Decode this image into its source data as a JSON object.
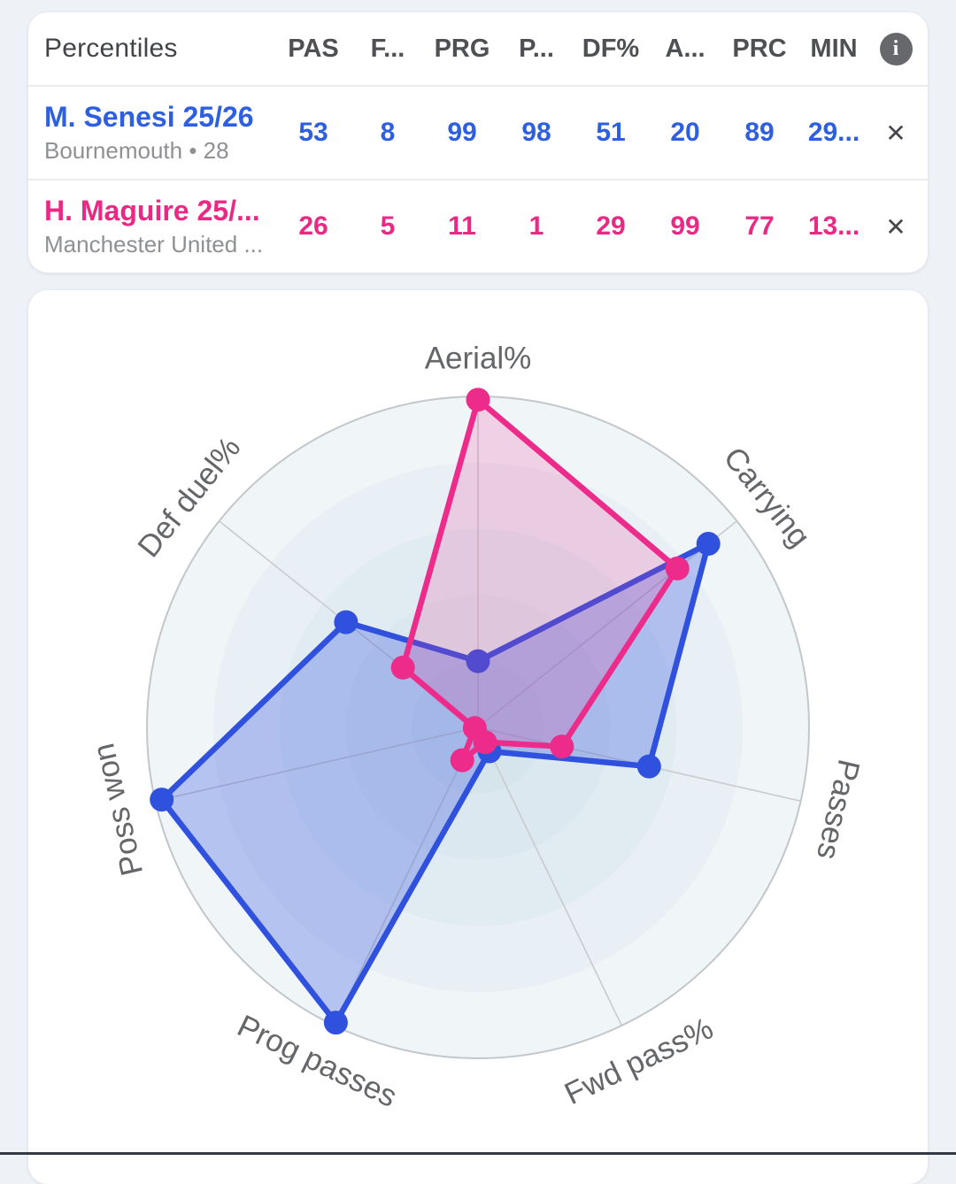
{
  "table": {
    "title": "Percentiles",
    "columns": [
      "PAS",
      "F...",
      "PRG",
      "P...",
      "DF%",
      "A...",
      "PRC",
      "MIN"
    ],
    "info_icon": "i",
    "close_icon": "✕",
    "rows": [
      {
        "name": "M. Senesi 25/26",
        "subtitle": "Bournemouth • 28",
        "color": "#2e5fe0",
        "values": [
          "53",
          "8",
          "99",
          "98",
          "51",
          "20",
          "89",
          "29..."
        ]
      },
      {
        "name": "H. Maguire 25/...",
        "subtitle": "Manchester United ...",
        "color": "#e92a84",
        "values": [
          "26",
          "5",
          "11",
          "1",
          "29",
          "99",
          "77",
          "13..."
        ]
      }
    ]
  },
  "chart_data": {
    "type": "radar",
    "axes": [
      "Aerial%",
      "Carrying",
      "Passes",
      "Fwd pass%",
      "Prog passes",
      "Poss won",
      "Def duel%"
    ],
    "range": [
      0,
      100
    ],
    "grid": "concentric-circles",
    "ring_steps": [
      1.0,
      0.8,
      0.6,
      0.4,
      0.2
    ],
    "ring_colors": [
      "#f0f5f8",
      "#e8f0f5",
      "#e1ecf2",
      "#dbe8ef",
      "#d6e4ec"
    ],
    "outer_stroke_color": "#c2c7cc",
    "axis_line_color": "#c9cbcd",
    "label_color": "#64666a",
    "legend": "none",
    "series": [
      {
        "name": "M. Senesi 25/26",
        "color": "#3051de",
        "fill": "rgba(48, 81, 222, 0.30)",
        "values": [
          20,
          89,
          53,
          8,
          99,
          98,
          51
        ]
      },
      {
        "name": "H. Maguire 25/26",
        "color": "#ec2b8a",
        "fill": "rgba(236, 43, 138, 0.18)",
        "values": [
          99,
          77,
          26,
          5,
          11,
          1,
          29
        ]
      }
    ]
  }
}
